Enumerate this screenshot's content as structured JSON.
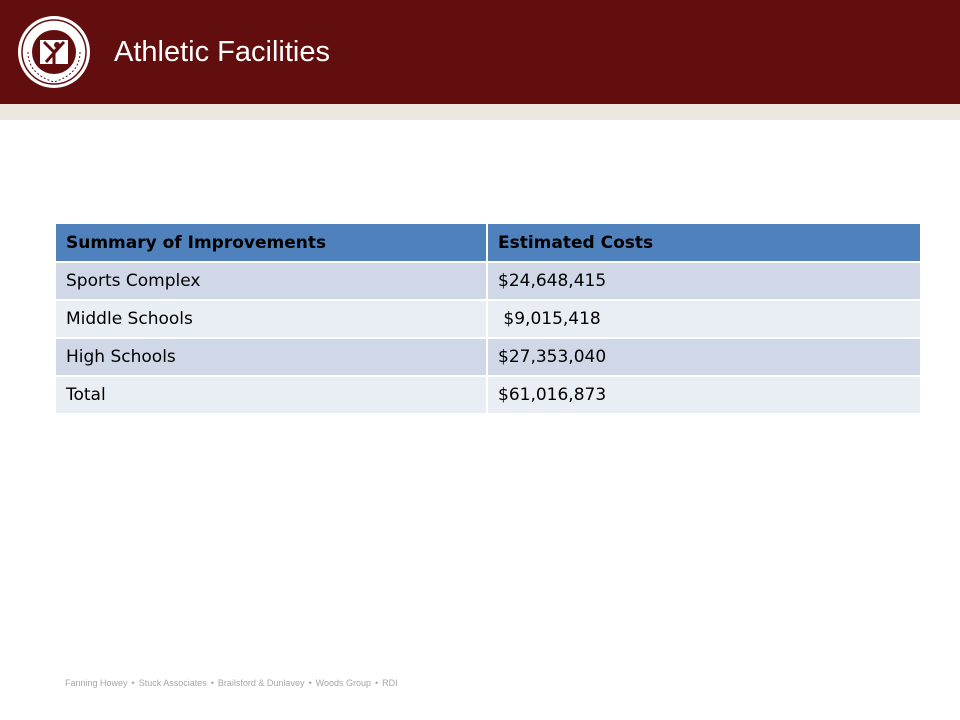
{
  "header": {
    "title": "Athletic Facilities",
    "logo_icon": "school-district-seal-icon",
    "colors": {
      "header_bg": "#620e0e",
      "band": "#ede8df"
    }
  },
  "table": {
    "columns": [
      "Summary of Improvements",
      "Estimated Costs"
    ],
    "rows": [
      [
        "Sports Complex",
        "$24,648,415"
      ],
      [
        "Middle Schools",
        " $9,015,418"
      ],
      [
        "High Schools",
        "$27,353,040"
      ],
      [
        "Total",
        "$61,016,873"
      ]
    ],
    "colors": {
      "header_bg": "#4f81bd",
      "row_odd": "#d0d8e8",
      "row_even": "#e9edf4"
    }
  },
  "footer": {
    "firms": [
      "Fanning Howey",
      "Stuck Associates",
      "Brailsford & Dunlavey",
      "Woods Group",
      "RDI"
    ],
    "separator": "•"
  }
}
